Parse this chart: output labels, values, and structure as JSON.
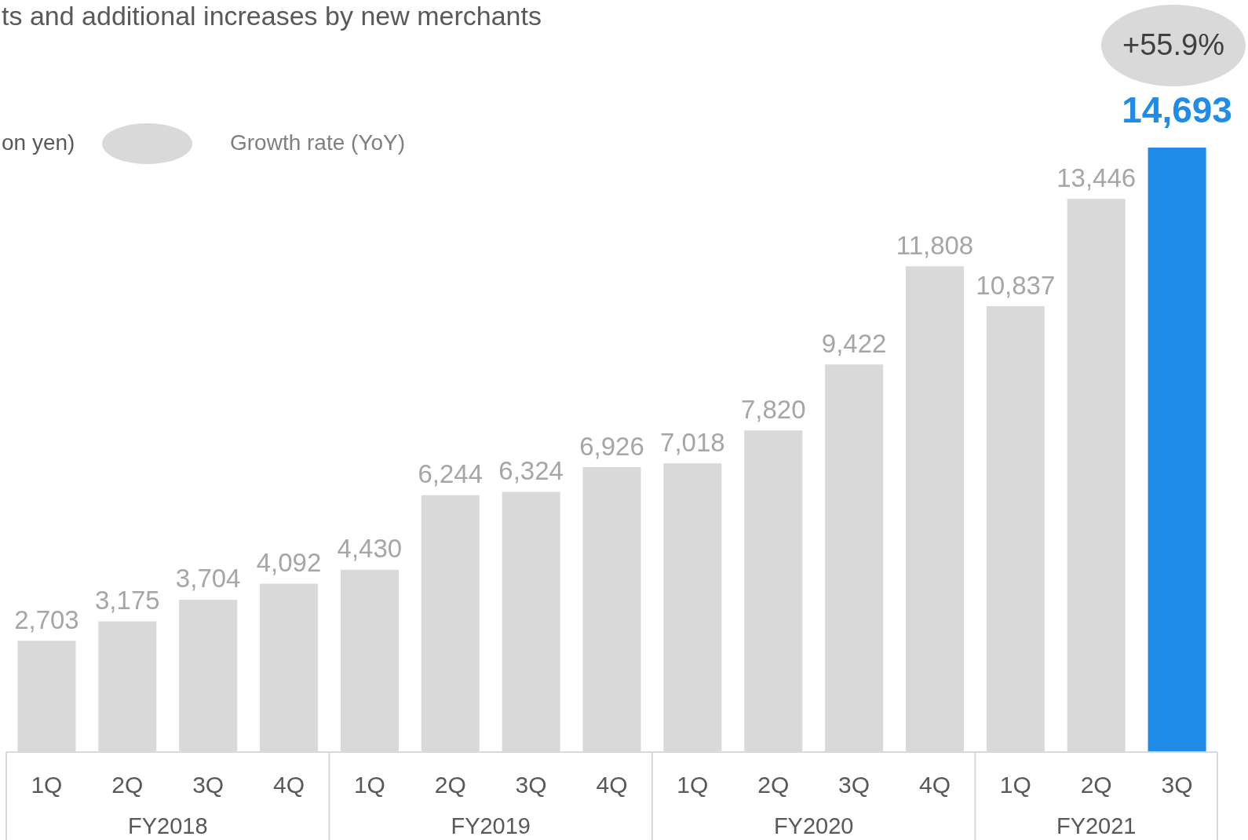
{
  "chart_data": {
    "type": "bar",
    "title": "ts and additional increases by new merchants",
    "ylabel": "on yen)",
    "categories": [
      "1Q",
      "2Q",
      "3Q",
      "4Q",
      "1Q",
      "2Q",
      "3Q",
      "4Q",
      "1Q",
      "2Q",
      "3Q",
      "4Q",
      "1Q",
      "2Q",
      "3Q"
    ],
    "values": [
      2703,
      3175,
      3704,
      4092,
      4430,
      6244,
      6324,
      6926,
      7018,
      7820,
      9422,
      11808,
      10837,
      13446,
      14693
    ],
    "colors": [
      "#d9d9d9",
      "#d9d9d9",
      "#d9d9d9",
      "#d9d9d9",
      "#d9d9d9",
      "#d9d9d9",
      "#d9d9d9",
      "#d9d9d9",
      "#d9d9d9",
      "#d9d9d9",
      "#d9d9d9",
      "#d9d9d9",
      "#d9d9d9",
      "#d9d9d9",
      "#1e8ce8"
    ],
    "value_labels": [
      "2,703",
      "3,175",
      "3,704",
      "4,092",
      "4,430",
      "6,244",
      "6,324",
      "6,926",
      "7,018",
      "7,820",
      "9,422",
      "11,808",
      "10,837",
      "13,446",
      "14,693"
    ],
    "annotations": [
      "+55.9%",
      "Growth rate (YoY)",
      "FY2018",
      "FY2019",
      "FY2020",
      "FY2021"
    ]
  }
}
